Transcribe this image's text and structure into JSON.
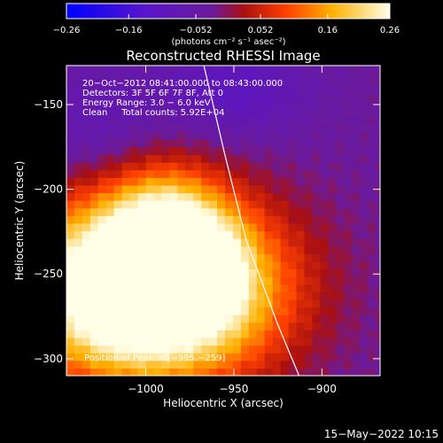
{
  "chart_data": {
    "type": "heatmap",
    "title": "Reconstructed RHESSI Image",
    "xlabel": "Heliocentric X (arcsec)",
    "ylabel": "Heliocentric Y (arcsec)",
    "xlim": [
      -1045,
      -867
    ],
    "ylim": [
      -310,
      -127
    ],
    "xticks": [
      -1000,
      -950,
      -900
    ],
    "xtick_labels": [
      "−1000",
      "−950",
      "−900"
    ],
    "yticks": [
      -150,
      -200,
      -250,
      -300
    ],
    "ytick_labels": [
      "−150",
      "−200",
      "−250",
      "−300"
    ],
    "grid": false,
    "colorbar": {
      "min": -0.26,
      "max": 0.26,
      "ticks": [
        -0.26,
        -0.16,
        -0.052,
        0.052,
        0.16,
        0.26
      ],
      "tick_labels": [
        "−0.26",
        "−0.16",
        "−0.052",
        "0.052",
        "0.16",
        "0.26"
      ],
      "units": "(photons cm⁻² s⁻¹ asec⁻²)"
    },
    "annotations": [
      "20−Oct−2012 08:41:00.000 to 08:43:00.000",
      "Detectors: 3F 5F 6F 7F 8F, Att 0",
      "Energy Range: 3.0 − 6.0 keV",
      "Clean     Total counts: 5.92E+04"
    ],
    "peak_label": "Position of Peak = [−995,−259]",
    "peak": {
      "x": -995,
      "y": -259
    },
    "limb": [
      [
        -967,
        -127
      ],
      [
        -955,
        -180
      ],
      [
        -943,
        -230
      ],
      [
        -925,
        -280
      ],
      [
        -913,
        -310
      ]
    ],
    "sources": [
      {
        "x": -998,
        "y": -258,
        "sx": 48,
        "sy": 36,
        "amp": 0.5
      },
      {
        "x": -988,
        "y": -222,
        "sx": 22,
        "sy": 24,
        "amp": 0.16
      },
      {
        "x": -955,
        "y": -245,
        "sx": 10,
        "sy": 18,
        "amp": 0.05
      },
      {
        "x": -1030,
        "y": -160,
        "sx": 25,
        "sy": 25,
        "amp": -0.05
      },
      {
        "x": -950,
        "y": -140,
        "sx": 30,
        "sy": 20,
        "amp": -0.08
      }
    ],
    "background": -0.03
  },
  "footer": {
    "timestamp": "15−May−2022 10:15"
  }
}
